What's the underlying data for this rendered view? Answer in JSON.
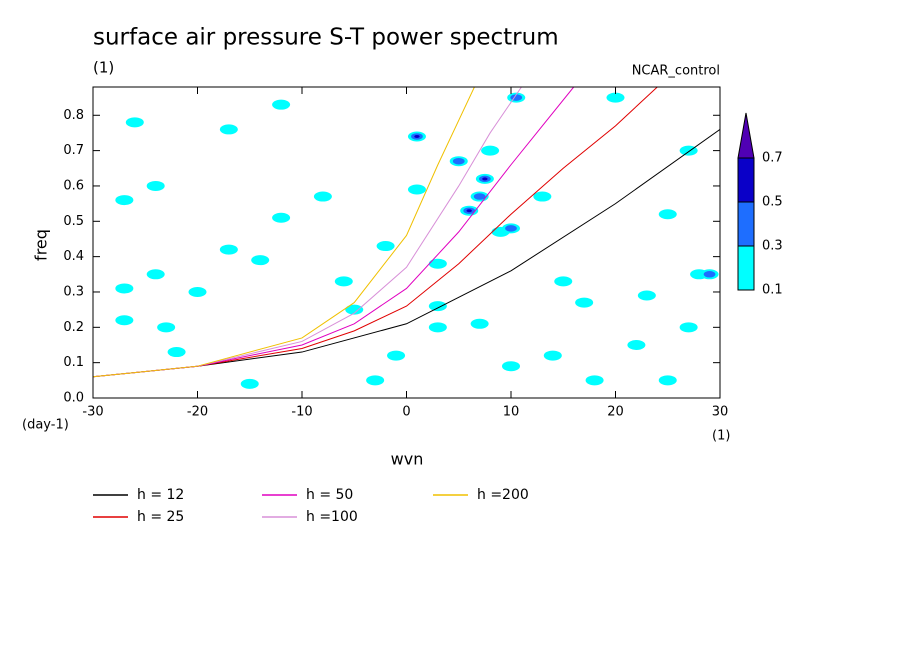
{
  "chart_data": {
    "type": "contour",
    "title": "surface air pressure S-T power spectrum",
    "subtitle": "(1)",
    "run_label": "NCAR_control",
    "x_label": "wvn",
    "x_units": "(1)",
    "y_label": "freq",
    "y_units": "(day-1)",
    "xlim": [
      -30,
      30
    ],
    "xticks": [
      -30,
      -20,
      -10,
      0,
      10,
      20,
      30
    ],
    "ylim": [
      0,
      0.88
    ],
    "yticks": [
      {
        "value": 0,
        "label": "0.0"
      },
      0.1,
      0.2,
      0.3,
      0.4,
      0.5,
      0.6,
      0.7,
      0.8
    ],
    "colorbar": {
      "levels": [
        0.1,
        0.3,
        0.5,
        0.7
      ],
      "colors": [
        "#00ffff",
        "#1e6eff",
        "#0a00c8",
        "#5000b4"
      ]
    },
    "patches": {
      "x": [
        -26,
        -17,
        -24,
        -27,
        -12,
        -8,
        -12,
        -17,
        -14,
        -24,
        -27,
        -20,
        -23,
        -27,
        -22,
        -2,
        3,
        9,
        1,
        -6,
        -5,
        -1,
        3,
        7,
        14,
        18,
        25,
        22,
        27,
        23,
        17,
        28,
        20,
        27,
        13,
        25,
        -3,
        10,
        3,
        -15,
        15,
        8,
        1,
        7.5,
        6,
        5,
        10,
        10.5,
        7,
        29
      ],
      "y": [
        0.78,
        0.76,
        0.6,
        0.56,
        0.83,
        0.57,
        0.51,
        0.42,
        0.39,
        0.35,
        0.31,
        0.3,
        0.2,
        0.22,
        0.13,
        0.43,
        0.38,
        0.47,
        0.59,
        0.33,
        0.25,
        0.12,
        0.2,
        0.21,
        0.12,
        0.05,
        0.05,
        0.15,
        0.2,
        0.29,
        0.27,
        0.35,
        0.85,
        0.7,
        0.57,
        0.52,
        0.05,
        0.09,
        0.26,
        0.04,
        0.33,
        0.7,
        0.74,
        0.62,
        0.53,
        0.67,
        0.48,
        0.85,
        0.57,
        0.35
      ],
      "values": [
        0.2,
        0.2,
        0.2,
        0.2,
        0.2,
        0.2,
        0.2,
        0.2,
        0.2,
        0.2,
        0.2,
        0.2,
        0.2,
        0.2,
        0.2,
        0.2,
        0.2,
        0.2,
        0.2,
        0.2,
        0.2,
        0.2,
        0.2,
        0.2,
        0.2,
        0.2,
        0.2,
        0.2,
        0.2,
        0.2,
        0.2,
        0.2,
        0.2,
        0.2,
        0.2,
        0.2,
        0.2,
        0.2,
        0.2,
        0.2,
        0.2,
        0.2,
        0.55,
        0.55,
        0.55,
        0.35,
        0.35,
        0.35,
        0.35,
        0.35
      ]
    },
    "series": [
      {
        "name": "h = 12",
        "color": "#000000",
        "x": [
          -30,
          -20,
          -10,
          0,
          10,
          20,
          30
        ],
        "values": [
          0.06,
          0.09,
          0.13,
          0.21,
          0.36,
          0.55,
          0.76
        ]
      },
      {
        "name": "h = 25",
        "color": "#e00000",
        "x": [
          -30,
          -20,
          -10,
          -5,
          0,
          5,
          10,
          15,
          20,
          24
        ],
        "values": [
          0.06,
          0.09,
          0.14,
          0.19,
          0.26,
          0.38,
          0.52,
          0.65,
          0.77,
          0.88
        ]
      },
      {
        "name": "h = 50",
        "color": "#e000c0",
        "x": [
          -30,
          -20,
          -10,
          -5,
          0,
          5,
          10,
          16
        ],
        "values": [
          0.06,
          0.09,
          0.15,
          0.21,
          0.31,
          0.47,
          0.66,
          0.88
        ]
      },
      {
        "name": "h =100",
        "color": "#d890d8",
        "x": [
          -30,
          -20,
          -10,
          -5,
          0,
          5,
          8,
          11
        ],
        "values": [
          0.06,
          0.09,
          0.16,
          0.24,
          0.37,
          0.6,
          0.75,
          0.88
        ]
      },
      {
        "name": "h =200",
        "color": "#f0c000",
        "x": [
          -30,
          -20,
          -10,
          -5,
          0,
          3,
          6.5
        ],
        "values": [
          0.06,
          0.09,
          0.17,
          0.27,
          0.46,
          0.66,
          0.88
        ]
      }
    ]
  }
}
